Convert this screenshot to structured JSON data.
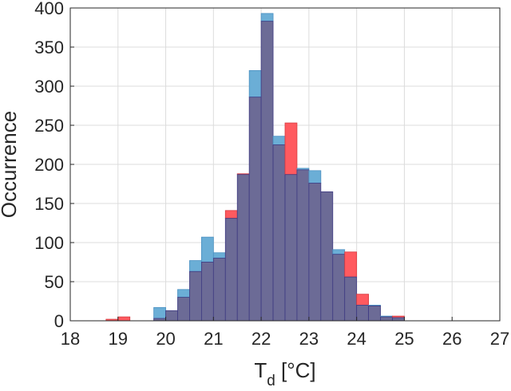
{
  "chart_data": {
    "type": "bar",
    "xlabel": "T",
    "xlabel_subscript": "d",
    "xlabel_unit": " [°C]",
    "ylabel": "Occurrence",
    "xlim": [
      18,
      27
    ],
    "ylim": [
      0,
      400
    ],
    "xticks": [
      18,
      19,
      20,
      21,
      22,
      23,
      24,
      25,
      26,
      27
    ],
    "yticks": [
      0,
      50,
      100,
      150,
      200,
      250,
      300,
      350,
      400
    ],
    "grid": true,
    "bin_width": 0.25,
    "bin_starts": [
      18.75,
      19.0,
      19.25,
      19.5,
      19.75,
      20.0,
      20.25,
      20.5,
      20.75,
      21.0,
      21.25,
      21.5,
      21.75,
      22.0,
      22.25,
      22.5,
      22.75,
      23.0,
      23.25,
      23.5,
      23.75,
      24.0,
      24.25,
      24.5,
      24.75,
      25.0,
      25.25,
      25.5,
      25.75,
      26.0
    ],
    "series": [
      {
        "color": "#6baed6",
        "values": [
          0,
          0,
          0,
          0,
          17,
          13,
          40,
          77,
          107,
          87,
          131,
          187,
          320,
          393,
          236,
          187,
          195,
          192,
          165,
          91,
          56,
          20,
          20,
          6,
          4,
          0,
          0,
          0,
          0,
          0
        ]
      },
      {
        "color": "#ff5a5f",
        "values": [
          2,
          5,
          0,
          0,
          3,
          13,
          30,
          63,
          75,
          80,
          141,
          188,
          286,
          383,
          225,
          253,
          193,
          176,
          165,
          85,
          88,
          34,
          19,
          5,
          6,
          0,
          0,
          0,
          0,
          0
        ]
      }
    ],
    "overlap_color": "#6c6b96"
  }
}
